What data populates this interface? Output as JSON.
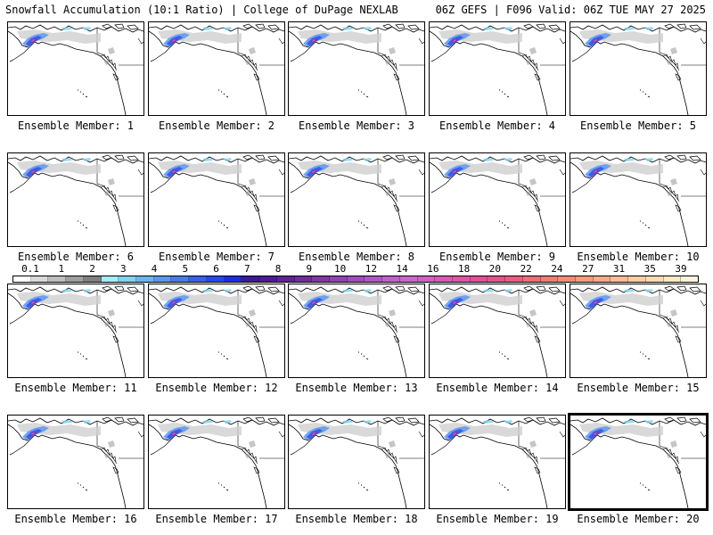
{
  "header": {
    "left_title": "Snowfall Accumulation (10:1 Ratio) | College of DuPage NEXLAB",
    "right_title": "06Z GEFS | F096 Valid: 06Z TUE MAY 27 2025"
  },
  "panels": [
    {
      "label": "Ensemble Member: 1"
    },
    {
      "label": "Ensemble Member: 2"
    },
    {
      "label": "Ensemble Member: 3"
    },
    {
      "label": "Ensemble Member: 4"
    },
    {
      "label": "Ensemble Member: 5"
    },
    {
      "label": "Ensemble Member: 6"
    },
    {
      "label": "Ensemble Member: 7"
    },
    {
      "label": "Ensemble Member: 8"
    },
    {
      "label": "Ensemble Member: 9"
    },
    {
      "label": "Ensemble Member: 10"
    },
    {
      "label": "Ensemble Member: 11"
    },
    {
      "label": "Ensemble Member: 12"
    },
    {
      "label": "Ensemble Member: 13"
    },
    {
      "label": "Ensemble Member: 14"
    },
    {
      "label": "Ensemble Member: 15"
    },
    {
      "label": "Ensemble Member: 16"
    },
    {
      "label": "Ensemble Member: 17"
    },
    {
      "label": "Ensemble Member: 18"
    },
    {
      "label": "Ensemble Member: 19"
    },
    {
      "label": "Ensemble Member: 20",
      "selected": true
    }
  ],
  "colorbar": {
    "labels": [
      "0.1",
      "1",
      "2",
      "3",
      "4",
      "5",
      "6",
      "7",
      "8",
      "9",
      "10",
      "12",
      "14",
      "16",
      "18",
      "20",
      "22",
      "24",
      "27",
      "31",
      "35",
      "39"
    ],
    "colors": [
      "#ffffff",
      "#d9d9d9",
      "#bdbdbd",
      "#9e9e9e",
      "#7f7f7f",
      "#a6ecf5",
      "#7fd4ee",
      "#6bb5ee",
      "#5a96ee",
      "#4a7aee",
      "#3a5ef0",
      "#2a44f2",
      "#1f2be8",
      "#3a1a9e",
      "#4d1a9a",
      "#5e2496",
      "#6f2e9e",
      "#7f38a8",
      "#8f42b2",
      "#9f4cbc",
      "#af56c6",
      "#bf60cc",
      "#cc66cc",
      "#d45fbf",
      "#dc58b2",
      "#e451a5",
      "#ea4a98",
      "#ee4f8c",
      "#f05a80",
      "#f26a78",
      "#f47a74",
      "#f68a78",
      "#f89a80",
      "#f9aa8a",
      "#fabb96",
      "#fbcba4",
      "#fcdbb4",
      "#fde9c6",
      "#fef4dc"
    ]
  }
}
